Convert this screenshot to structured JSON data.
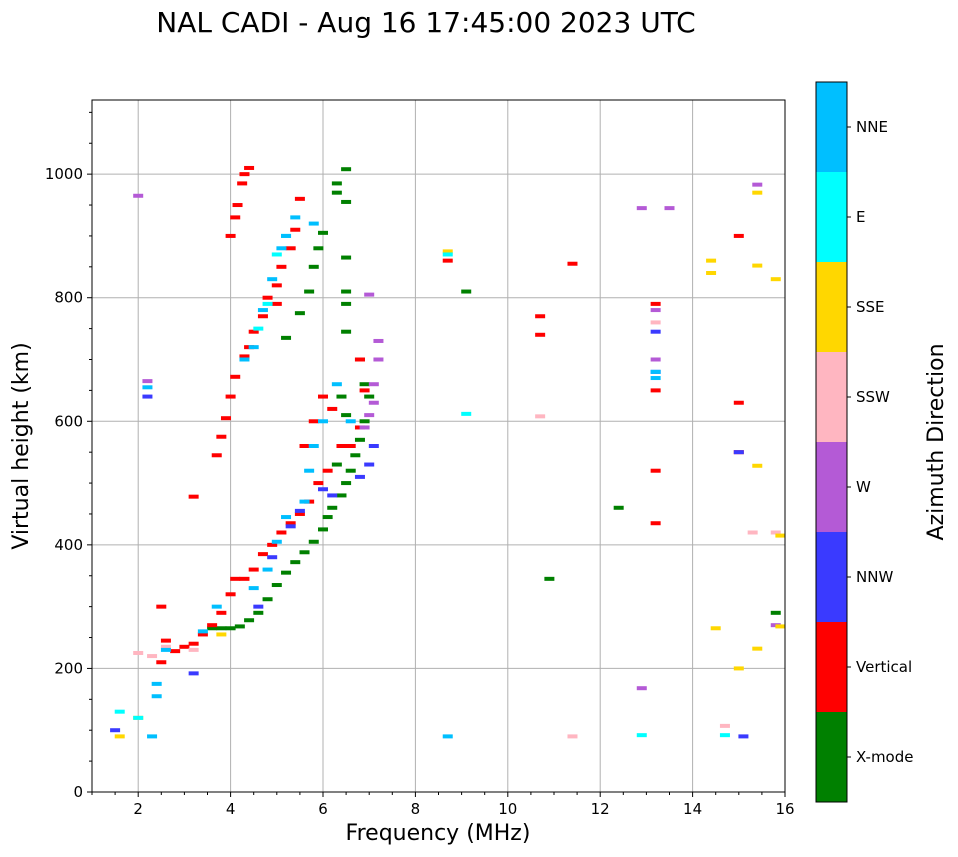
{
  "chart_data": {
    "type": "scatter",
    "title": "NAL CADI - Aug 16 17:45:00 2023 UTC",
    "xlabel": "Frequency (MHz)",
    "ylabel": "Virtual height (km)",
    "xlim": [
      1,
      16
    ],
    "ylim": [
      0,
      1120
    ],
    "xticks": [
      2,
      4,
      6,
      8,
      10,
      12,
      14,
      16
    ],
    "yticks": [
      0,
      200,
      400,
      600,
      800,
      1000
    ],
    "grid": true,
    "colorbar": {
      "label": "Azimuth Direction",
      "categories": [
        {
          "name": "X-mode",
          "color": "#008000"
        },
        {
          "name": "Vertical",
          "color": "#ff0000"
        },
        {
          "name": "NNW",
          "color": "#3a3aff"
        },
        {
          "name": "W",
          "color": "#b45ad6"
        },
        {
          "name": "SSW",
          "color": "#ffb6c1"
        },
        {
          "name": "SSE",
          "color": "#ffd700"
        },
        {
          "name": "E",
          "color": "#00ffff"
        },
        {
          "name": "NNE",
          "color": "#00bfff"
        }
      ]
    },
    "series": [
      {
        "name": "X-mode",
        "points": [
          [
            3.6,
            265
          ],
          [
            3.8,
            265
          ],
          [
            4.0,
            265
          ],
          [
            4.2,
            268
          ],
          [
            4.4,
            278
          ],
          [
            4.6,
            290
          ],
          [
            4.8,
            312
          ],
          [
            5.0,
            335
          ],
          [
            5.2,
            355
          ],
          [
            5.4,
            372
          ],
          [
            5.6,
            388
          ],
          [
            5.8,
            405
          ],
          [
            6.0,
            425
          ],
          [
            6.1,
            445
          ],
          [
            6.2,
            460
          ],
          [
            6.4,
            480
          ],
          [
            6.5,
            500
          ],
          [
            6.6,
            520
          ],
          [
            6.7,
            545
          ],
          [
            6.8,
            570
          ],
          [
            6.9,
            600
          ],
          [
            7.0,
            640
          ],
          [
            6.3,
            530
          ],
          [
            6.5,
            610
          ],
          [
            6.4,
            640
          ],
          [
            6.8,
            700
          ],
          [
            6.9,
            660
          ],
          [
            5.5,
            775
          ],
          [
            5.2,
            735
          ],
          [
            5.7,
            810
          ],
          [
            5.8,
            850
          ],
          [
            5.9,
            880
          ],
          [
            6.0,
            905
          ],
          [
            6.5,
            865
          ],
          [
            6.5,
            810
          ],
          [
            6.5,
            790
          ],
          [
            6.5,
            745
          ],
          [
            6.3,
            985
          ],
          [
            6.3,
            970
          ],
          [
            6.5,
            955
          ],
          [
            6.5,
            1008
          ],
          [
            9.1,
            810
          ],
          [
            10.9,
            345
          ],
          [
            12.4,
            460
          ],
          [
            15.8,
            290
          ]
        ]
      },
      {
        "name": "Vertical",
        "points": [
          [
            2.5,
            210
          ],
          [
            2.6,
            245
          ],
          [
            2.5,
            300
          ],
          [
            2.8,
            228
          ],
          [
            3.0,
            235
          ],
          [
            3.2,
            240
          ],
          [
            3.4,
            255
          ],
          [
            3.6,
            270
          ],
          [
            3.8,
            290
          ],
          [
            4.0,
            320
          ],
          [
            4.1,
            345
          ],
          [
            4.3,
            345
          ],
          [
            4.5,
            360
          ],
          [
            4.7,
            385
          ],
          [
            4.9,
            400
          ],
          [
            5.1,
            420
          ],
          [
            5.3,
            435
          ],
          [
            5.5,
            450
          ],
          [
            5.7,
            470
          ],
          [
            5.9,
            500
          ],
          [
            6.1,
            520
          ],
          [
            5.6,
            560
          ],
          [
            5.8,
            600
          ],
          [
            6.0,
            640
          ],
          [
            6.2,
            620
          ],
          [
            6.4,
            560
          ],
          [
            6.6,
            560
          ],
          [
            6.8,
            590
          ],
          [
            6.9,
            650
          ],
          [
            6.8,
            700
          ],
          [
            3.2,
            478
          ],
          [
            3.7,
            545
          ],
          [
            3.8,
            575
          ],
          [
            3.9,
            605
          ],
          [
            4.0,
            640
          ],
          [
            4.1,
            672
          ],
          [
            4.3,
            705
          ],
          [
            4.4,
            720
          ],
          [
            4.5,
            745
          ],
          [
            4.7,
            770
          ],
          [
            4.8,
            800
          ],
          [
            5.0,
            820
          ],
          [
            5.1,
            850
          ],
          [
            5.3,
            880
          ],
          [
            5.4,
            910
          ],
          [
            5.5,
            960
          ],
          [
            5.0,
            790
          ],
          [
            4.0,
            900
          ],
          [
            4.1,
            930
          ],
          [
            4.15,
            950
          ],
          [
            4.25,
            985
          ],
          [
            4.3,
            1000
          ],
          [
            4.4,
            1010
          ],
          [
            8.7,
            860
          ],
          [
            10.7,
            770
          ],
          [
            10.7,
            740
          ],
          [
            11.4,
            855
          ],
          [
            13.2,
            650
          ],
          [
            13.2,
            520
          ],
          [
            13.2,
            435
          ],
          [
            13.2,
            790
          ],
          [
            15.0,
            630
          ],
          [
            15.0,
            550
          ],
          [
            15.0,
            900
          ]
        ]
      },
      {
        "name": "NNW",
        "points": [
          [
            1.5,
            100
          ],
          [
            2.2,
            640
          ],
          [
            3.2,
            192
          ],
          [
            4.6,
            300
          ],
          [
            4.9,
            380
          ],
          [
            5.3,
            430
          ],
          [
            5.5,
            455
          ],
          [
            6.0,
            490
          ],
          [
            6.2,
            480
          ],
          [
            6.8,
            510
          ],
          [
            7.0,
            530
          ],
          [
            7.1,
            560
          ],
          [
            13.2,
            745
          ],
          [
            13.2,
            680
          ],
          [
            15.0,
            550
          ],
          [
            15.1,
            90
          ]
        ]
      },
      {
        "name": "W",
        "points": [
          [
            2.0,
            965
          ],
          [
            2.2,
            665
          ],
          [
            6.9,
            590
          ],
          [
            7.0,
            610
          ],
          [
            7.1,
            630
          ],
          [
            7.1,
            660
          ],
          [
            7.2,
            700
          ],
          [
            7.2,
            730
          ],
          [
            7.0,
            805
          ],
          [
            13.2,
            780
          ],
          [
            13.2,
            700
          ],
          [
            12.9,
            945
          ],
          [
            13.5,
            945
          ],
          [
            12.9,
            168
          ],
          [
            15.4,
            983
          ],
          [
            15.8,
            270
          ]
        ]
      },
      {
        "name": "SSW",
        "points": [
          [
            2.0,
            225
          ],
          [
            2.3,
            220
          ],
          [
            3.2,
            230
          ],
          [
            2.6,
            235
          ],
          [
            10.7,
            608
          ],
          [
            11.4,
            90
          ],
          [
            13.2,
            760
          ],
          [
            14.7,
            107
          ],
          [
            15.3,
            420
          ],
          [
            15.8,
            420
          ]
        ]
      },
      {
        "name": "SSE",
        "points": [
          [
            1.6,
            90
          ],
          [
            2.0,
            120
          ],
          [
            3.8,
            255
          ],
          [
            8.7,
            875
          ],
          [
            14.4,
            860
          ],
          [
            14.4,
            840
          ],
          [
            14.5,
            265
          ],
          [
            15.0,
            200
          ],
          [
            15.4,
            232
          ],
          [
            15.4,
            528
          ],
          [
            15.4,
            970
          ],
          [
            15.4,
            852
          ],
          [
            15.8,
            830
          ],
          [
            15.9,
            415
          ],
          [
            15.9,
            268
          ]
        ]
      },
      {
        "name": "E",
        "points": [
          [
            1.6,
            130
          ],
          [
            2.0,
            120
          ],
          [
            8.7,
            870
          ],
          [
            9.1,
            612
          ],
          [
            12.9,
            92
          ],
          [
            14.7,
            92
          ],
          [
            5.0,
            870
          ],
          [
            4.8,
            790
          ],
          [
            4.6,
            750
          ],
          [
            5.2,
            900
          ]
        ]
      },
      {
        "name": "NNE",
        "points": [
          [
            2.2,
            655
          ],
          [
            2.3,
            90
          ],
          [
            2.4,
            155
          ],
          [
            2.4,
            175
          ],
          [
            2.6,
            230
          ],
          [
            3.4,
            260
          ],
          [
            3.7,
            300
          ],
          [
            4.5,
            330
          ],
          [
            4.8,
            360
          ],
          [
            5.0,
            405
          ],
          [
            5.2,
            445
          ],
          [
            5.6,
            470
          ],
          [
            5.7,
            520
          ],
          [
            5.8,
            560
          ],
          [
            6.0,
            600
          ],
          [
            6.3,
            660
          ],
          [
            6.6,
            600
          ],
          [
            4.3,
            700
          ],
          [
            4.5,
            720
          ],
          [
            4.7,
            780
          ],
          [
            4.9,
            830
          ],
          [
            5.1,
            880
          ],
          [
            5.2,
            900
          ],
          [
            5.4,
            930
          ],
          [
            5.8,
            920
          ],
          [
            8.7,
            90
          ],
          [
            13.2,
            680
          ],
          [
            13.2,
            670
          ]
        ]
      }
    ]
  }
}
